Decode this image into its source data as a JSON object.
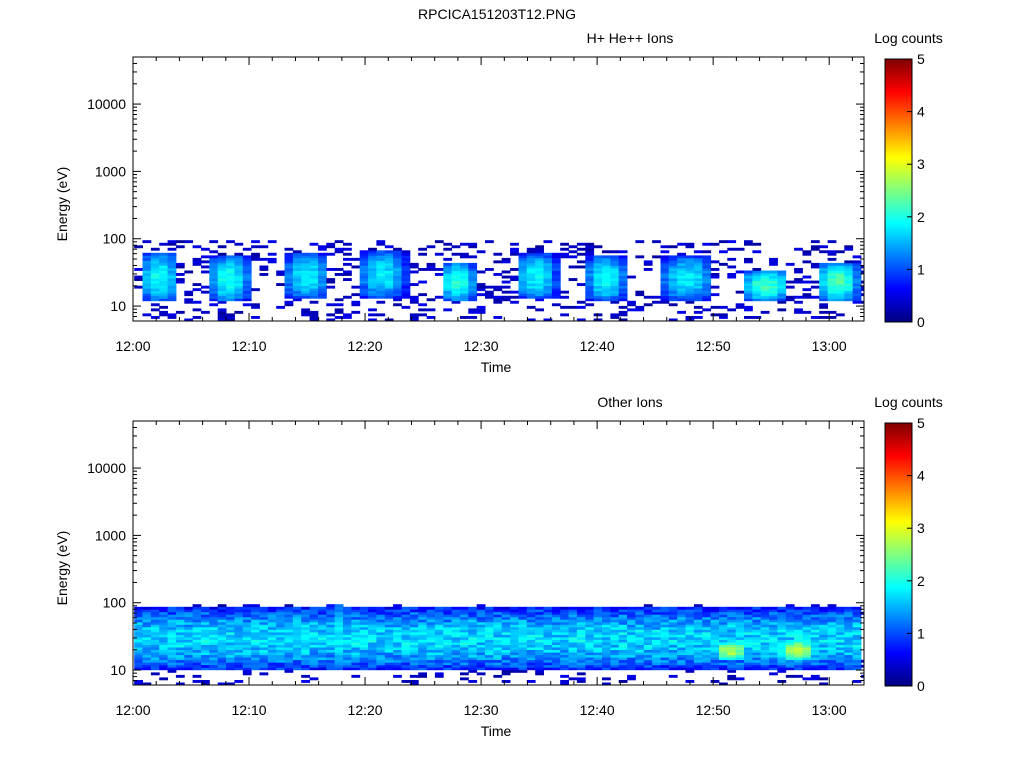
{
  "page_title": "RPCICA151203T12.PNG",
  "chart_data": [
    {
      "type": "heatmap",
      "title": "H+ He++ Ions",
      "xlabel": "Time",
      "ylabel": "Energy (eV)",
      "colorbar_label": "Log counts",
      "x_ticks": [
        "12:00",
        "12:10",
        "12:20",
        "12:30",
        "12:40",
        "12:50",
        "13:00"
      ],
      "x_range_minutes": [
        0,
        63
      ],
      "y_scale": "log",
      "y_ticks": [
        "10",
        "100",
        "1000",
        "10000"
      ],
      "y_range": [
        6,
        50000
      ],
      "colorbar_ticks": [
        "0",
        "1",
        "2",
        "3",
        "4",
        "5"
      ],
      "colorbar_range": [
        0,
        5
      ],
      "colormap": [
        "#00007f",
        "#0000ff",
        "#007fff",
        "#00ffff",
        "#7fff7f",
        "#ffff00",
        "#ff7f00",
        "#ff0000",
        "#7f0000"
      ],
      "energy_band_ev": [
        6,
        95
      ],
      "bursts": [
        {
          "t_start": 0.5,
          "t_end": 4.0,
          "e_low": 12,
          "e_high": 60,
          "peak_log_counts": 1.9
        },
        {
          "t_start": 6.5,
          "t_end": 10.0,
          "e_low": 12,
          "e_high": 55,
          "peak_log_counts": 2.0
        },
        {
          "t_start": 13.0,
          "t_end": 17.0,
          "e_low": 13,
          "e_high": 60,
          "peak_log_counts": 1.8
        },
        {
          "t_start": 19.5,
          "t_end": 23.5,
          "e_low": 13,
          "e_high": 65,
          "peak_log_counts": 1.8
        },
        {
          "t_start": 26.5,
          "t_end": 29.5,
          "e_low": 12,
          "e_high": 45,
          "peak_log_counts": 2.1
        },
        {
          "t_start": 33.0,
          "t_end": 36.5,
          "e_low": 13,
          "e_high": 60,
          "peak_log_counts": 1.9
        },
        {
          "t_start": 39.0,
          "t_end": 42.5,
          "e_low": 12,
          "e_high": 55,
          "peak_log_counts": 1.9
        },
        {
          "t_start": 45.5,
          "t_end": 50.0,
          "e_low": 12,
          "e_high": 55,
          "peak_log_counts": 1.8
        },
        {
          "t_start": 52.5,
          "t_end": 56.5,
          "e_low": 12,
          "e_high": 35,
          "peak_log_counts": 2.2
        },
        {
          "t_start": 59.0,
          "t_end": 62.5,
          "e_low": 12,
          "e_high": 45,
          "peak_log_counts": 2.3
        }
      ]
    },
    {
      "type": "heatmap",
      "title": "Other Ions",
      "xlabel": "Time",
      "ylabel": "Energy (eV)",
      "colorbar_label": "Log counts",
      "x_ticks": [
        "12:00",
        "12:10",
        "12:20",
        "12:30",
        "12:40",
        "12:50",
        "13:00"
      ],
      "x_range_minutes": [
        0,
        63
      ],
      "y_scale": "log",
      "y_ticks": [
        "10",
        "100",
        "1000",
        "10000"
      ],
      "y_range": [
        6,
        50000
      ],
      "colorbar_ticks": [
        "0",
        "1",
        "2",
        "3",
        "4",
        "5"
      ],
      "colorbar_range": [
        0,
        5
      ],
      "colormap": [
        "#00007f",
        "#0000ff",
        "#007fff",
        "#00ffff",
        "#7fff7f",
        "#ffff00",
        "#ff7f00",
        "#ff0000",
        "#7f0000"
      ],
      "energy_band_ev": [
        6,
        95
      ],
      "continuous_emission": {
        "t_start": 0,
        "t_end": 63,
        "e_low": 10,
        "e_high": 85,
        "typical_log_counts": 1.6
      },
      "hot_spots": [
        {
          "t_start": 17.0,
          "t_end": 18.0,
          "e_low": 10,
          "e_high": 95,
          "peak_log_counts": 2.0
        },
        {
          "t_start": 50.0,
          "t_end": 53.0,
          "e_low": 14,
          "e_high": 28,
          "peak_log_counts": 2.8
        },
        {
          "t_start": 55.5,
          "t_end": 59.0,
          "e_low": 14,
          "e_high": 28,
          "peak_log_counts": 2.9
        }
      ]
    }
  ]
}
